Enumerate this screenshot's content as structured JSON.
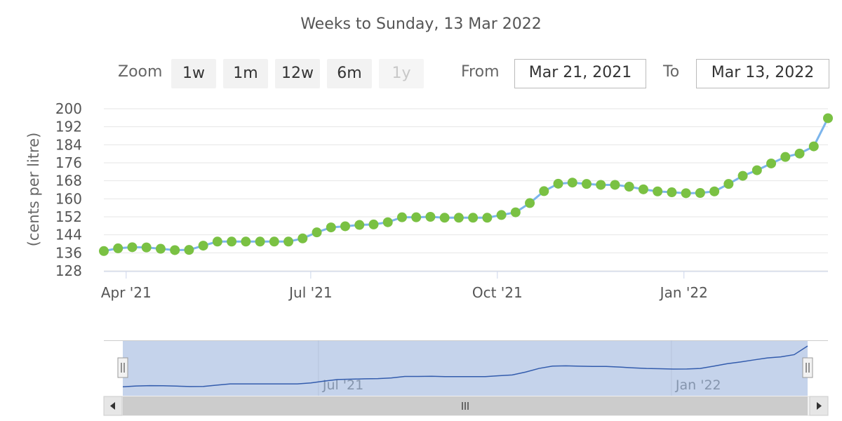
{
  "subtitle": "Weeks to Sunday, 13 Mar 2022",
  "range_selector": {
    "zoom_label": "Zoom",
    "buttons": [
      "1w",
      "1m",
      "12w",
      "6m",
      "1y"
    ],
    "disabled_button": "1y",
    "from_label": "From",
    "from_value": "Mar 21, 2021",
    "to_label": "To",
    "to_value": "Mar 13, 2022"
  },
  "colors": {
    "line": "#7cb5ec",
    "marker": "#7ac143",
    "navigator_fill": "#c5d3eb",
    "navigator_line": "#335cad",
    "grid": "#e6e6e6"
  },
  "chart_data": {
    "type": "line",
    "ylabel": "(cents per litre)",
    "ylim": [
      128,
      200
    ],
    "yticks": [
      128,
      136,
      144,
      152,
      160,
      168,
      176,
      184,
      192,
      200
    ],
    "x_start": "2021-03-21",
    "x_end": "2022-03-13",
    "x_ticks": [
      {
        "date": "2021-04-01",
        "label": "Apr '21"
      },
      {
        "date": "2021-07-01",
        "label": "Jul '21"
      },
      {
        "date": "2021-10-01",
        "label": "Oct '21"
      },
      {
        "date": "2022-01-01",
        "label": "Jan '22"
      }
    ],
    "series": [
      {
        "name": "",
        "x": [
          "2021-03-21",
          "2021-03-28",
          "2021-04-04",
          "2021-04-11",
          "2021-04-18",
          "2021-04-25",
          "2021-05-02",
          "2021-05-09",
          "2021-05-16",
          "2021-05-23",
          "2021-05-30",
          "2021-06-06",
          "2021-06-13",
          "2021-06-20",
          "2021-06-27",
          "2021-07-04",
          "2021-07-11",
          "2021-07-18",
          "2021-07-25",
          "2021-08-01",
          "2021-08-08",
          "2021-08-15",
          "2021-08-22",
          "2021-08-29",
          "2021-09-05",
          "2021-09-12",
          "2021-09-19",
          "2021-09-26",
          "2021-10-03",
          "2021-10-10",
          "2021-10-17",
          "2021-10-24",
          "2021-10-31",
          "2021-11-07",
          "2021-11-14",
          "2021-11-21",
          "2021-11-28",
          "2021-12-05",
          "2021-12-12",
          "2021-12-19",
          "2021-12-26",
          "2022-01-02",
          "2022-01-09",
          "2022-01-16",
          "2022-01-23",
          "2022-01-30",
          "2022-02-06",
          "2022-02-13",
          "2022-02-20",
          "2022-02-27",
          "2022-03-06",
          "2022-03-13"
        ],
        "values": [
          136.8,
          138.0,
          138.5,
          138.4,
          137.8,
          137.2,
          137.3,
          139.2,
          141.0,
          141.0,
          141.0,
          141.0,
          141.0,
          141.0,
          142.4,
          145.1,
          147.3,
          147.8,
          148.4,
          148.6,
          149.6,
          151.8,
          151.8,
          152.0,
          151.6,
          151.6,
          151.6,
          151.6,
          152.8,
          154.0,
          158.1,
          163.4,
          166.7,
          167.2,
          166.6,
          166.2,
          166.2,
          165.4,
          164.2,
          163.3,
          162.9,
          162.5,
          162.6,
          163.3,
          166.6,
          170.2,
          172.7,
          175.7,
          178.6,
          180.1,
          183.3,
          195.8
        ]
      }
    ]
  },
  "navigator": {
    "x_ticks": [
      {
        "date": "2021-07-01",
        "label": "Jul '21"
      },
      {
        "date": "2022-01-01",
        "label": "Jan '22"
      }
    ]
  }
}
